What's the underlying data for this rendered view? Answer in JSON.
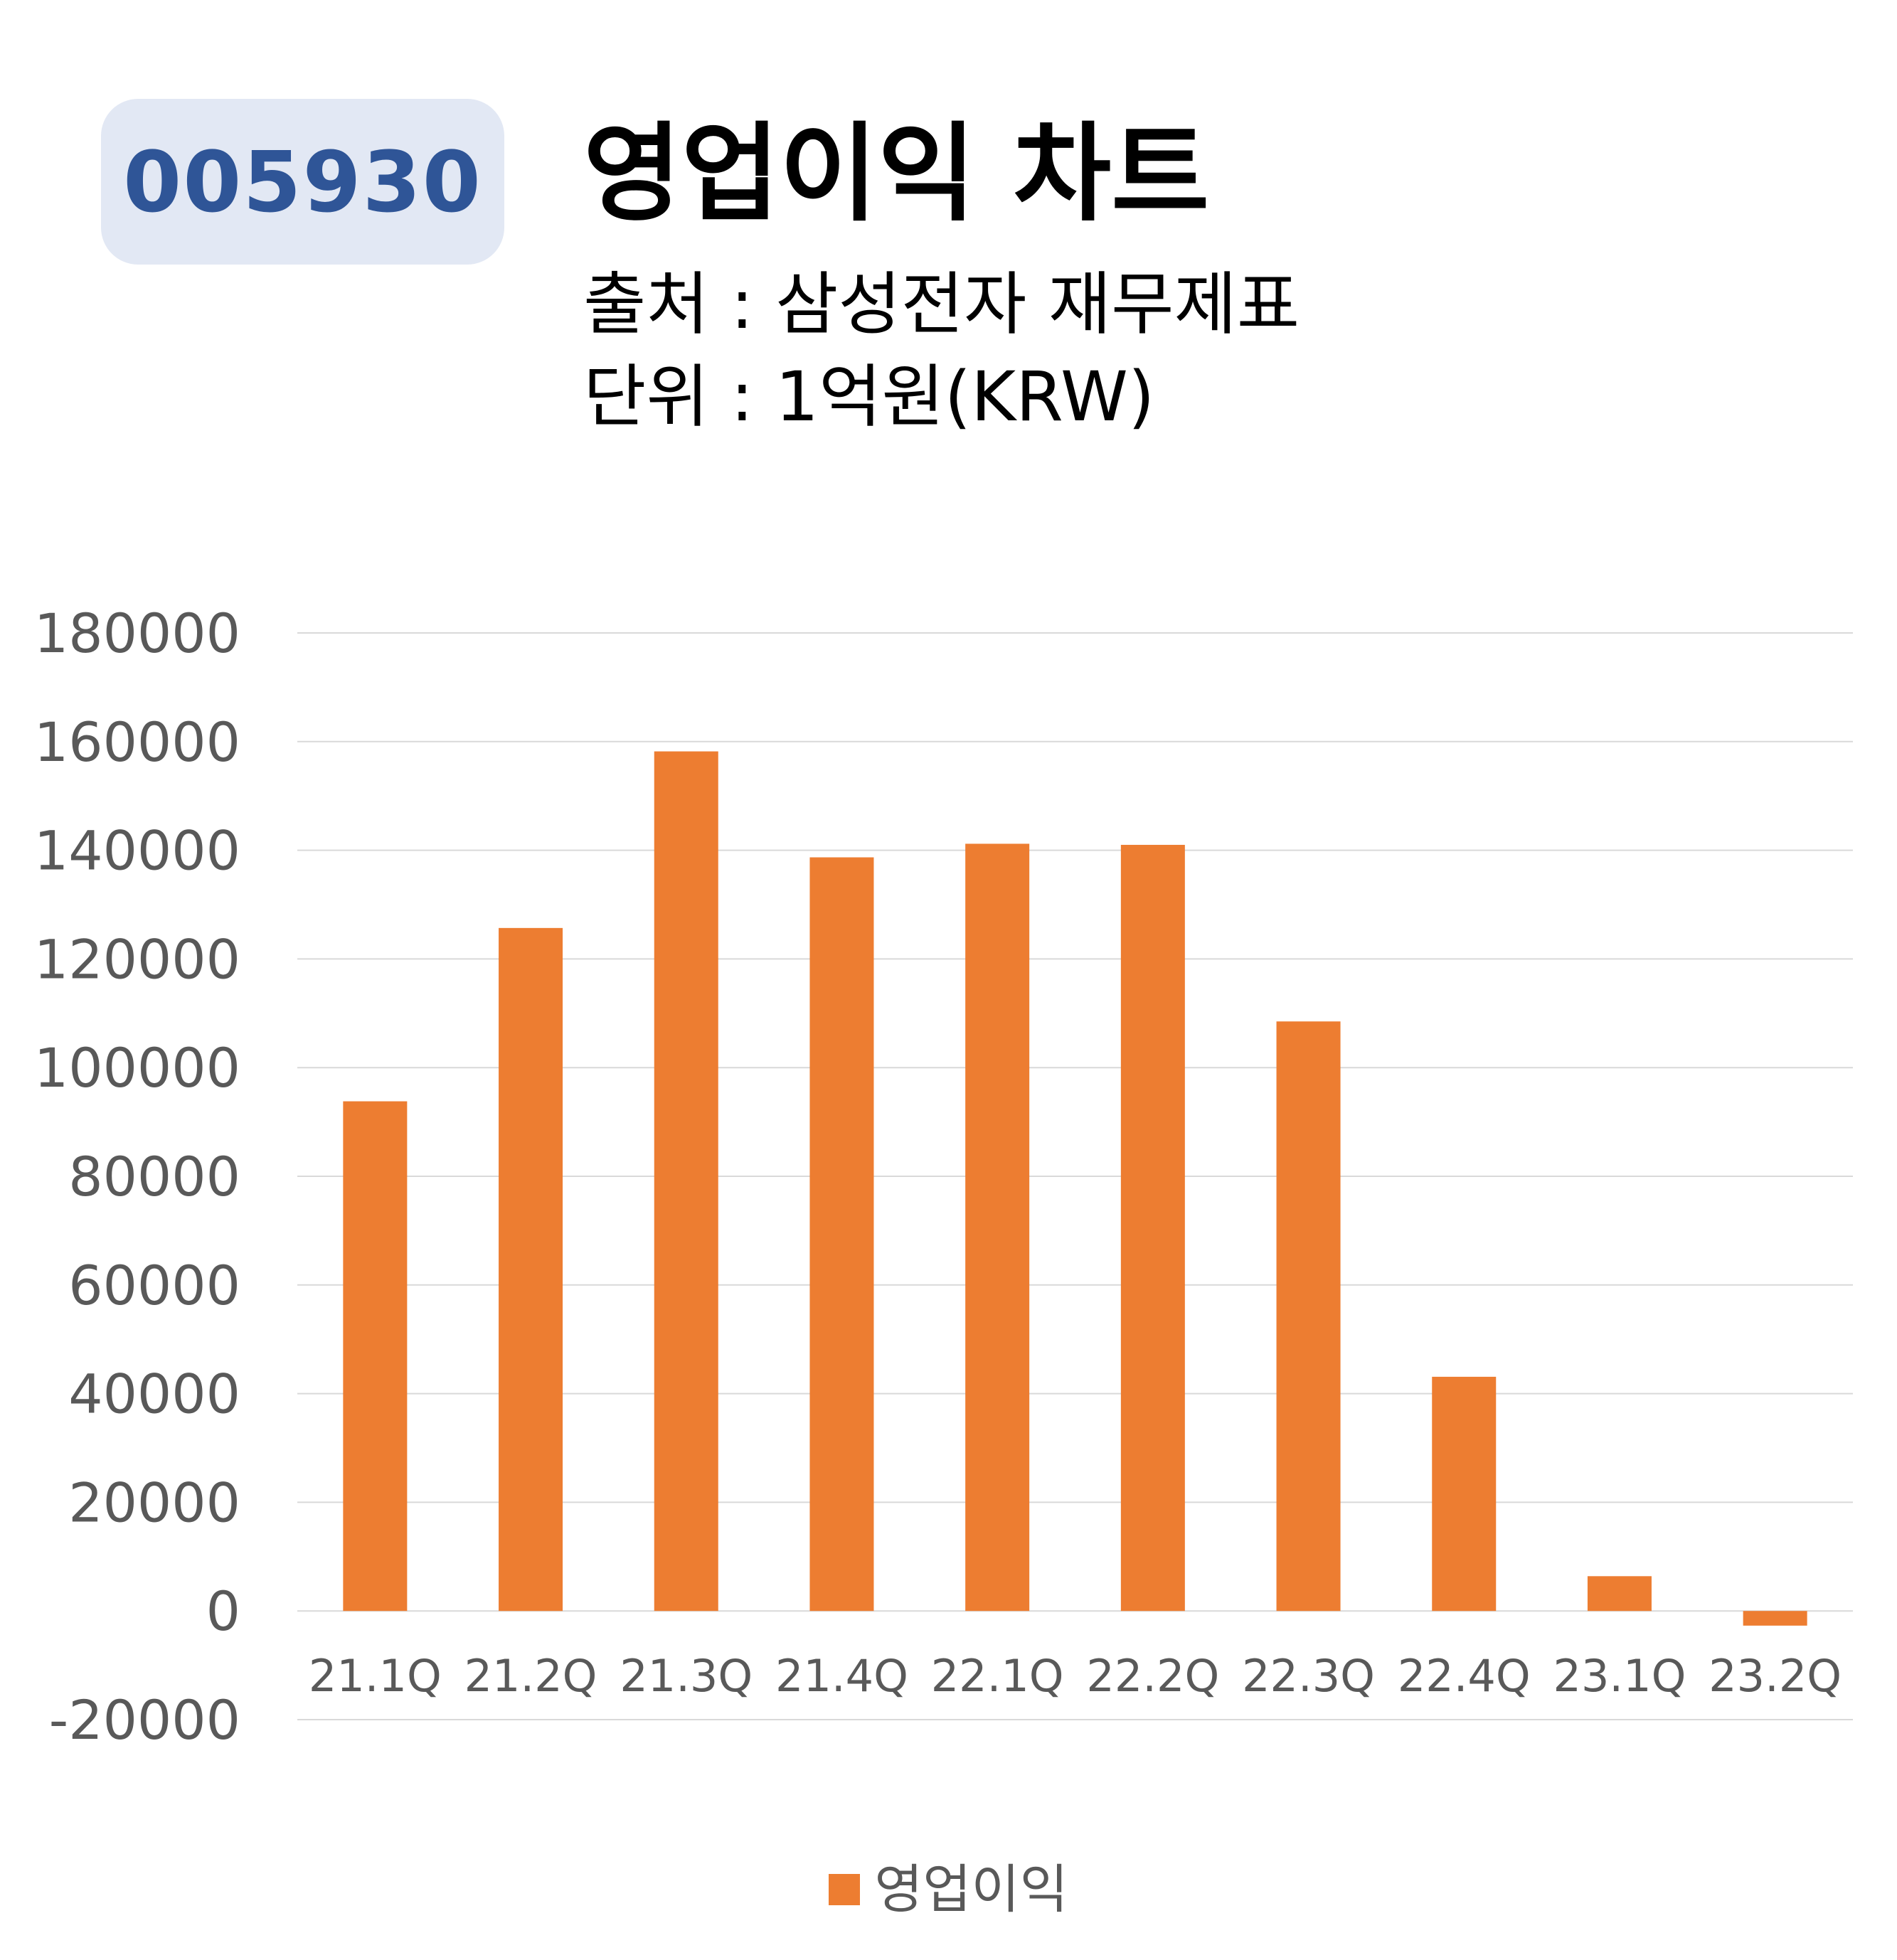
{
  "header": {
    "ticker": "005930",
    "title": "영업이익 차트",
    "source": "출처 : 삼성전자 재무제표",
    "unit": "단위 : 1억원(KRW)"
  },
  "colors": {
    "bar": "#ed7d31",
    "badge_bg": "#e2e8f4",
    "badge_text": "#2f5597",
    "grid": "#d9d9d9",
    "tick_text": "#595959"
  },
  "chart_data": {
    "type": "bar",
    "categories": [
      "21.1Q",
      "21.2Q",
      "21.3Q",
      "21.4Q",
      "22.1Q",
      "22.2Q",
      "22.3Q",
      "22.4Q",
      "23.1Q",
      "23.2Q"
    ],
    "series": [
      {
        "name": "영업이익",
        "values": [
          93800,
          125700,
          158200,
          138700,
          141200,
          141000,
          108500,
          43100,
          6400,
          -2700
        ]
      }
    ],
    "y_ticks": [
      "180000",
      "160000",
      "140000",
      "120000",
      "100000",
      "80000",
      "60000",
      "40000",
      "20000",
      "0",
      "-20000"
    ],
    "ylim": [
      -20000,
      180000
    ],
    "grid": true,
    "legend_position": "bottom"
  },
  "legend": {
    "label": "영업이익"
  }
}
